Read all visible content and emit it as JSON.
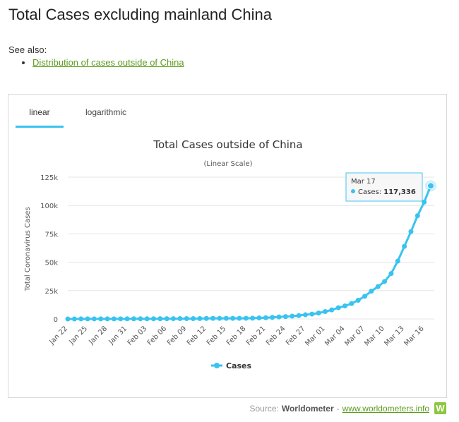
{
  "page": {
    "title": "Total Cases excluding mainland China",
    "see_also_label": "See also:",
    "see_also_links": [
      "Distribution of cases outside of China"
    ]
  },
  "tabs": [
    {
      "label": "linear",
      "active": true
    },
    {
      "label": "logarithmic",
      "active": false
    }
  ],
  "colors": {
    "series": "#39c3f0",
    "link": "#5c9b1c",
    "logo": "#8dc63f"
  },
  "tooltip": {
    "date": "Mar 17",
    "series": "Cases",
    "value": "117,336"
  },
  "source": {
    "label": "Source:",
    "brand": "Worldometer",
    "separator": "-",
    "link": "www.worldometers.info",
    "logo_icon": "worldometer-w-logo-icon",
    "logo_letter": "W"
  },
  "chart_data": {
    "type": "line",
    "title": "Total Cases outside of China",
    "subtitle": "(Linear Scale)",
    "xlabel": "",
    "ylabel": "Total Coronavirus Cases",
    "ylim": [
      0,
      125000
    ],
    "yticks": [
      0,
      25000,
      50000,
      75000,
      100000,
      125000
    ],
    "ytick_labels": [
      "0",
      "25k",
      "50k",
      "75k",
      "100k",
      "125k"
    ],
    "xtick_labels": [
      "Jan 22",
      "Jan 25",
      "Jan 28",
      "Jan 31",
      "Feb 03",
      "Feb 06",
      "Feb 09",
      "Feb 12",
      "Feb 15",
      "Feb 18",
      "Feb 21",
      "Feb 24",
      "Feb 27",
      "Mar 01",
      "Mar 04",
      "Mar 07",
      "Mar 10",
      "Mar 13",
      "Mar 16"
    ],
    "x": [
      "Jan 22",
      "Jan 23",
      "Jan 24",
      "Jan 25",
      "Jan 26",
      "Jan 27",
      "Jan 28",
      "Jan 29",
      "Jan 30",
      "Jan 31",
      "Feb 01",
      "Feb 02",
      "Feb 03",
      "Feb 04",
      "Feb 05",
      "Feb 06",
      "Feb 07",
      "Feb 08",
      "Feb 09",
      "Feb 10",
      "Feb 11",
      "Feb 12",
      "Feb 13",
      "Feb 14",
      "Feb 15",
      "Feb 16",
      "Feb 17",
      "Feb 18",
      "Feb 19",
      "Feb 20",
      "Feb 21",
      "Feb 22",
      "Feb 23",
      "Feb 24",
      "Feb 25",
      "Feb 26",
      "Feb 27",
      "Feb 28",
      "Feb 29",
      "Mar 01",
      "Mar 02",
      "Mar 03",
      "Mar 04",
      "Mar 05",
      "Mar 06",
      "Mar 07",
      "Mar 08",
      "Mar 09",
      "Mar 10",
      "Mar 11",
      "Mar 12",
      "Mar 13",
      "Mar 14",
      "Mar 15",
      "Mar 16",
      "Mar 17"
    ],
    "series": [
      {
        "name": "Cases",
        "values": [
          10,
          20,
          40,
          50,
          60,
          70,
          80,
          90,
          110,
          130,
          150,
          160,
          170,
          190,
          220,
          230,
          270,
          290,
          310,
          320,
          400,
          450,
          510,
          520,
          530,
          550,
          580,
          620,
          700,
          920,
          1100,
          1400,
          1800,
          2100,
          2500,
          3000,
          3700,
          4300,
          5200,
          6500,
          8000,
          9900,
          11500,
          13600,
          16500,
          20000,
          24500,
          28500,
          33000,
          40000,
          51000,
          64000,
          77000,
          91000,
          103000,
          117336
        ]
      }
    ],
    "legend": {
      "position": "bottom-center",
      "entries": [
        "Cases"
      ]
    },
    "grid": true
  }
}
